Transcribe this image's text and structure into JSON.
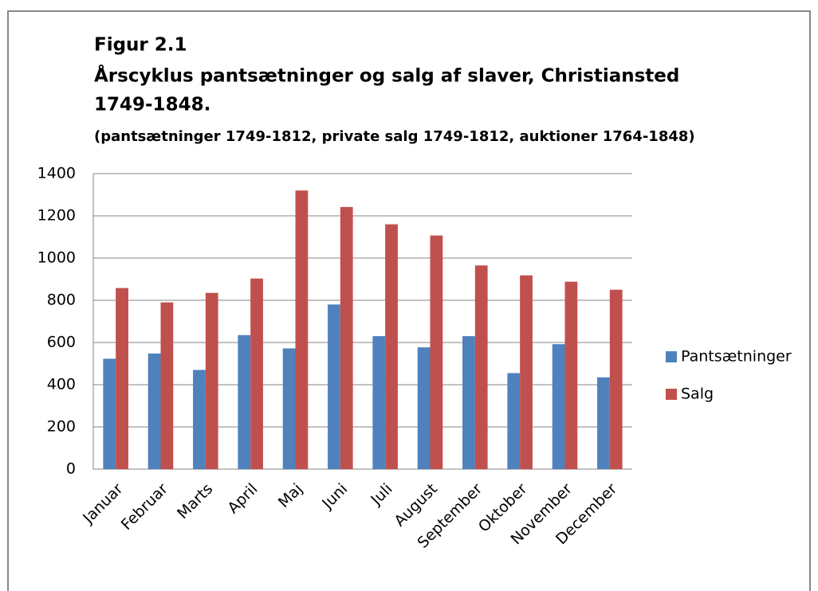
{
  "chart_data": {
    "type": "bar",
    "title": [
      "Figur 2.1",
      "Årscyklus pantsætninger og salg af slaver, Christiansted",
      "1749-1848."
    ],
    "subtitle": "(pantsætninger 1749-1812, private salg 1749-1812, auktioner 1764-1848)",
    "categories": [
      "Januar",
      "Februar",
      "Marts",
      "April",
      "Maj",
      "Juni",
      "Juli",
      "August",
      "September",
      "Oktober",
      "November",
      "December"
    ],
    "series": [
      {
        "name": "Pantsætninger",
        "color": "#4f81bd",
        "values": [
          523,
          548,
          470,
          635,
          572,
          780,
          630,
          577,
          630,
          455,
          592,
          435
        ]
      },
      {
        "name": "Salg",
        "color": "#c0504d",
        "values": [
          858,
          790,
          835,
          903,
          1320,
          1242,
          1160,
          1107,
          965,
          918,
          888,
          850
        ]
      }
    ],
    "ylim": [
      0,
      1400
    ],
    "yticks": [
      0,
      200,
      400,
      600,
      800,
      1000,
      1200,
      1400
    ],
    "grid": true,
    "legend": "right"
  }
}
